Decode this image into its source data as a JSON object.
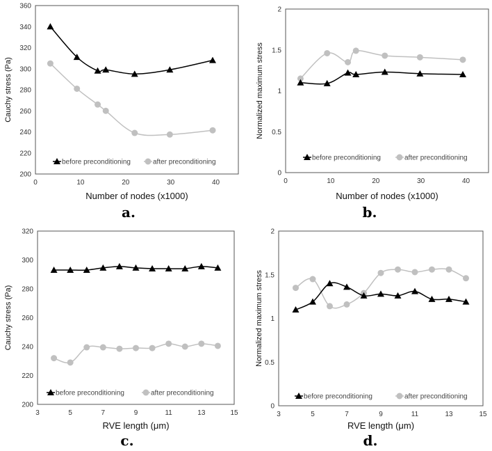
{
  "chart_data": [
    {
      "type": "line",
      "panel_label": "a.",
      "xlabel": "Number of nodes (x1000)",
      "ylabel": "Cauchy stress (Pa)",
      "xlim": [
        0,
        45
      ],
      "ylim": [
        200,
        360
      ],
      "xticks": [
        0,
        10,
        20,
        30,
        40
      ],
      "yticks": [
        200,
        220,
        240,
        260,
        280,
        300,
        320,
        340,
        360
      ],
      "x": [
        3.3,
        9.2,
        13.8,
        15.6,
        22,
        29.8,
        39.3
      ],
      "series": [
        {
          "name": "before preconditioning",
          "marker": "triangle",
          "color": "#000000",
          "values": [
            340,
            311,
            298,
            299,
            295,
            299,
            308
          ]
        },
        {
          "name": "after preconditioning",
          "marker": "circle",
          "color": "#c0c0c0",
          "values": [
            305,
            281,
            266,
            260,
            239,
            237.5,
            241.5
          ]
        }
      ],
      "legend": "bottom"
    },
    {
      "type": "line",
      "panel_label": "b.",
      "xlabel": "Number of nodes (x1000)",
      "ylabel": "Normalized maximum stress",
      "xlim": [
        0,
        45
      ],
      "ylim": [
        0,
        2
      ],
      "xticks": [
        0,
        10,
        20,
        30,
        40
      ],
      "yticks": [
        0,
        0.5,
        1,
        1.5,
        2
      ],
      "x": [
        3.3,
        9.2,
        13.8,
        15.6,
        22,
        29.8,
        39.3
      ],
      "series": [
        {
          "name": "before preconditioning",
          "marker": "triangle",
          "color": "#000000",
          "values": [
            1.1,
            1.09,
            1.22,
            1.2,
            1.23,
            1.21,
            1.2
          ]
        },
        {
          "name": "after preconditioning",
          "marker": "circle",
          "color": "#c0c0c0",
          "values": [
            1.15,
            1.46,
            1.35,
            1.49,
            1.43,
            1.41,
            1.38
          ]
        }
      ],
      "legend": "bottom"
    },
    {
      "type": "line",
      "panel_label": "c.",
      "xlabel": "RVE length (μm)",
      "ylabel": "Cauchy stress (Pa)",
      "xlim": [
        3,
        15
      ],
      "ylim": [
        200,
        320
      ],
      "xticks": [
        3,
        5,
        7,
        9,
        11,
        13,
        15
      ],
      "yticks": [
        200,
        220,
        240,
        260,
        280,
        300,
        320
      ],
      "x": [
        4,
        5,
        6,
        7,
        8,
        9,
        10,
        11,
        12,
        13,
        14
      ],
      "series": [
        {
          "name": "before preconditioning",
          "marker": "triangle",
          "color": "#000000",
          "values": [
            293,
            293,
            293,
            294.5,
            295.5,
            294.5,
            294,
            294,
            294,
            295.5,
            294.5
          ]
        },
        {
          "name": "after preconditioning",
          "marker": "circle",
          "color": "#c0c0c0",
          "values": [
            232,
            229,
            239.5,
            239.5,
            238.5,
            239,
            239,
            242,
            240,
            242,
            240.5
          ]
        }
      ],
      "legend": "bottom"
    },
    {
      "type": "line",
      "panel_label": "d.",
      "xlabel": "RVE length (μm)",
      "ylabel": "Normalized maximum stress",
      "xlim": [
        3,
        15
      ],
      "ylim": [
        0,
        2
      ],
      "xticks": [
        3,
        5,
        7,
        9,
        11,
        13,
        15
      ],
      "yticks": [
        0,
        0.5,
        1,
        1.5,
        2
      ],
      "x": [
        4,
        5,
        6,
        7,
        8,
        9,
        10,
        11,
        12,
        13,
        14
      ],
      "series": [
        {
          "name": "before preconditioning",
          "marker": "triangle",
          "color": "#000000",
          "values": [
            1.1,
            1.19,
            1.4,
            1.36,
            1.26,
            1.28,
            1.26,
            1.31,
            1.22,
            1.22,
            1.19
          ]
        },
        {
          "name": "after preconditioning",
          "marker": "circle",
          "color": "#c0c0c0",
          "values": [
            1.35,
            1.45,
            1.14,
            1.16,
            1.29,
            1.52,
            1.56,
            1.53,
            1.56,
            1.56,
            1.46
          ]
        }
      ],
      "legend": "bottom"
    }
  ]
}
